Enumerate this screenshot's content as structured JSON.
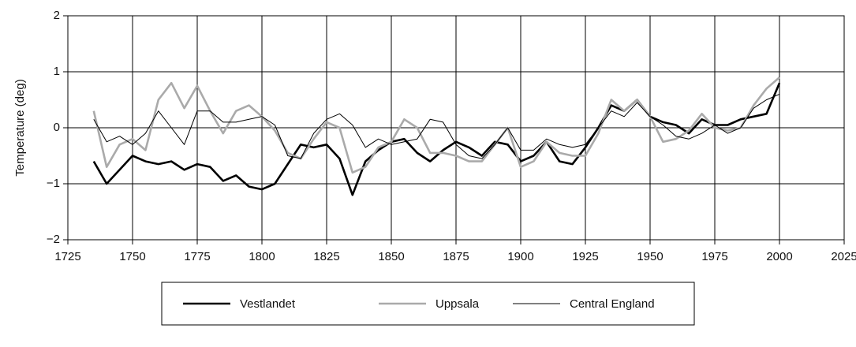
{
  "chart_data": {
    "type": "line",
    "ylabel": "Temperature (deg)",
    "x": [
      1735,
      1740,
      1745,
      1750,
      1755,
      1760,
      1765,
      1770,
      1775,
      1780,
      1785,
      1790,
      1795,
      1800,
      1805,
      1810,
      1815,
      1820,
      1825,
      1830,
      1835,
      1840,
      1845,
      1850,
      1855,
      1860,
      1865,
      1870,
      1875,
      1880,
      1885,
      1890,
      1895,
      1900,
      1905,
      1910,
      1915,
      1920,
      1925,
      1930,
      1935,
      1940,
      1945,
      1950,
      1955,
      1960,
      1965,
      1970,
      1975,
      1980,
      1985,
      1990,
      1995,
      2000
    ],
    "series": [
      {
        "name": "Vestlandet",
        "color": "#000000",
        "width": 2.6,
        "values": [
          -0.6,
          -1.0,
          -0.75,
          -0.5,
          -0.6,
          -0.65,
          -0.6,
          -0.75,
          -0.65,
          -0.7,
          -0.95,
          -0.85,
          -1.05,
          -1.1,
          -1.0,
          -0.65,
          -0.3,
          -0.35,
          -0.3,
          -0.55,
          -1.2,
          -0.6,
          -0.4,
          -0.25,
          -0.2,
          -0.45,
          -0.6,
          -0.4,
          -0.25,
          -0.35,
          -0.5,
          -0.25,
          -0.3,
          -0.6,
          -0.5,
          -0.25,
          -0.6,
          -0.65,
          -0.35,
          0.0,
          0.4,
          0.3,
          0.5,
          0.2,
          0.1,
          0.05,
          -0.1,
          0.15,
          0.05,
          0.05,
          0.15,
          0.2,
          0.25,
          0.8
        ]
      },
      {
        "name": "Uppsala",
        "color": "#aaaaaa",
        "width": 2.6,
        "values": [
          0.3,
          -0.7,
          -0.3,
          -0.2,
          -0.4,
          0.5,
          0.8,
          0.35,
          0.75,
          0.3,
          -0.1,
          0.3,
          0.4,
          0.2,
          -0.05,
          -0.45,
          -0.55,
          -0.2,
          0.1,
          0.0,
          -0.8,
          -0.7,
          -0.35,
          -0.25,
          0.15,
          0.0,
          -0.45,
          -0.45,
          -0.5,
          -0.6,
          -0.6,
          -0.3,
          0.0,
          -0.7,
          -0.6,
          -0.25,
          -0.45,
          -0.5,
          -0.5,
          -0.1,
          0.5,
          0.3,
          0.5,
          0.2,
          -0.25,
          -0.2,
          -0.05,
          0.25,
          0.0,
          -0.05,
          0.0,
          0.4,
          0.7,
          0.9
        ]
      },
      {
        "name": "Central England",
        "color": "#000000",
        "width": 1,
        "values": [
          0.15,
          -0.25,
          -0.15,
          -0.3,
          -0.1,
          0.3,
          0.0,
          -0.3,
          0.3,
          0.3,
          0.1,
          0.1,
          0.15,
          0.2,
          0.05,
          -0.5,
          -0.55,
          -0.1,
          0.15,
          0.25,
          0.05,
          -0.35,
          -0.2,
          -0.3,
          -0.25,
          -0.2,
          0.15,
          0.1,
          -0.3,
          -0.5,
          -0.55,
          -0.3,
          0.0,
          -0.4,
          -0.4,
          -0.2,
          -0.3,
          -0.35,
          -0.3,
          0.0,
          0.3,
          0.2,
          0.45,
          0.2,
          0.05,
          -0.15,
          -0.2,
          -0.1,
          0.05,
          -0.1,
          0.0,
          0.35,
          0.5,
          0.6
        ]
      }
    ],
    "xlim": [
      1725,
      2025
    ],
    "xticks": [
      1725,
      1750,
      1775,
      1800,
      1825,
      1850,
      1875,
      1900,
      1925,
      1950,
      1975,
      2000,
      2025
    ],
    "ylim": [
      -2,
      2
    ],
    "yticks": [
      {
        "value": -2,
        "label": "−2"
      },
      {
        "value": -1,
        "label": "−1"
      },
      0,
      1,
      2
    ],
    "grid": true,
    "legend": "bottom"
  }
}
